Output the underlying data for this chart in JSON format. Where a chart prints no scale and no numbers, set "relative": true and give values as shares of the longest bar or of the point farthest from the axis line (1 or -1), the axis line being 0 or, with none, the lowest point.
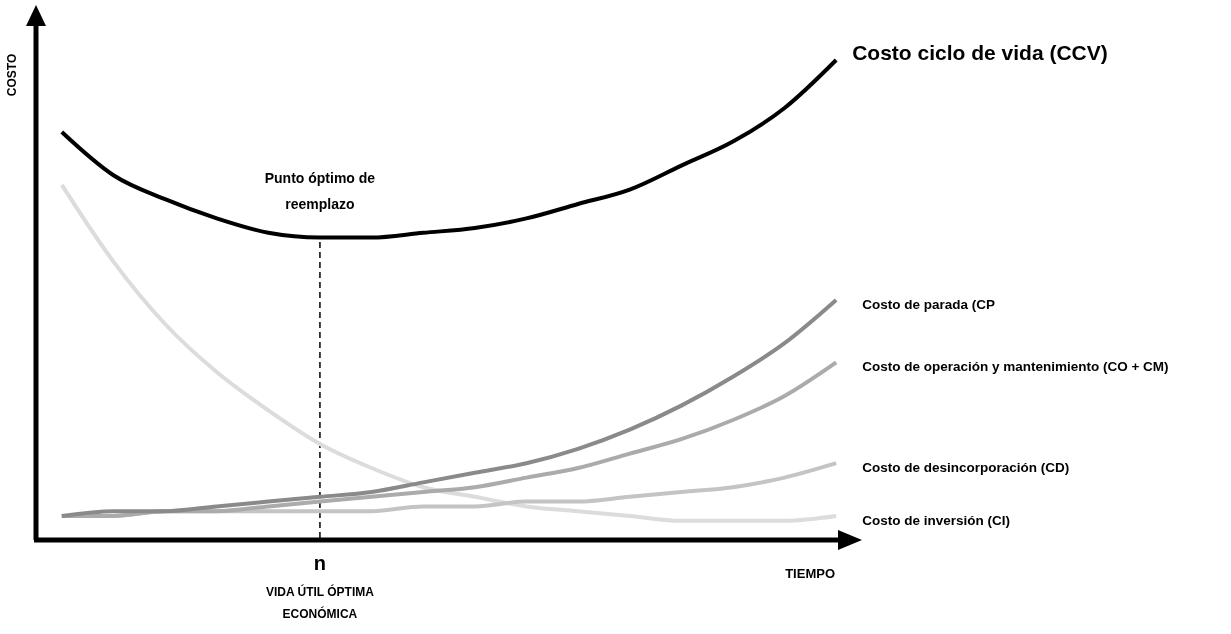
{
  "chart_data": {
    "type": "line",
    "relative": true,
    "xlabel": "TIEMPO",
    "ylabel": "COSTO",
    "categories": [
      null,
      null,
      null,
      null,
      null,
      null,
      null,
      null,
      null,
      null,
      null,
      null,
      null,
      null,
      null,
      null
    ],
    "series": [
      {
        "name": "Costo ciclo de vida (CCV)",
        "color": "#000000",
        "values": [
          0.85,
          0.76,
          0.71,
          0.67,
          0.64,
          0.63,
          0.63,
          0.64,
          0.65,
          0.67,
          0.7,
          0.73,
          0.78,
          0.83,
          0.9,
          1
        ]
      },
      {
        "name": "Costo de parada (CP",
        "color": "#8a8a8a",
        "values": [
          0.05,
          0.06,
          0.06,
          0.07,
          0.08,
          0.09,
          0.1,
          0.12,
          0.14,
          0.16,
          0.19,
          0.23,
          0.28,
          0.34,
          0.41,
          0.5
        ]
      },
      {
        "name": "Costo de operación y mantenimiento (CO + CM)",
        "color": "#ababab",
        "values": [
          0.05,
          0.05,
          0.06,
          0.06,
          0.07,
          0.08,
          0.09,
          0.1,
          0.11,
          0.13,
          0.15,
          0.18,
          0.21,
          0.25,
          0.3,
          0.37
        ]
      },
      {
        "name": "Costo de desincorporación (CD)",
        "color": "#c4c4c4",
        "values": [
          0.05,
          0.05,
          0.06,
          0.06,
          0.06,
          0.06,
          0.06,
          0.07,
          0.07,
          0.08,
          0.08,
          0.09,
          0.1,
          0.11,
          0.13,
          0.16
        ]
      },
      {
        "name": "Costo de inversión (CI)",
        "color": "#dcdcdc",
        "values": [
          0.74,
          0.58,
          0.45,
          0.35,
          0.27,
          0.2,
          0.15,
          0.11,
          0.09,
          0.07,
          0.06,
          0.05,
          0.04,
          0.04,
          0.04,
          0.05
        ]
      }
    ],
    "annotations": [
      "Punto óptimo de reemplazo",
      "n",
      "VIDA ÚTIL ÓPTIMA ECONÓMICA"
    ],
    "legend": false,
    "marker": "none",
    "line_style": "solid"
  }
}
